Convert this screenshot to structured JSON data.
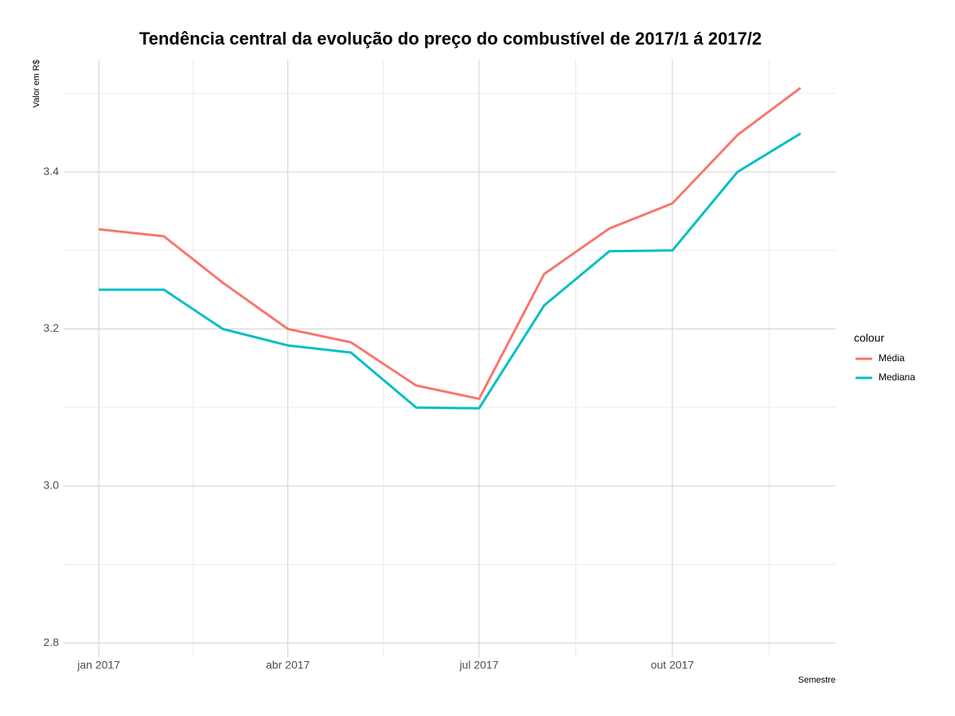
{
  "chart_data": {
    "type": "line",
    "title": "Tendência central da evolução do preço do combustível de 2017/1 á 2017/2",
    "x_label": "Semestre",
    "y_label": "Valor em R$",
    "legend_title": "colour",
    "legend_position": "right",
    "grid": true,
    "x": [
      "2017-01",
      "2017-02",
      "2017-03",
      "2017-04",
      "2017-05",
      "2017-06",
      "2017-07",
      "2017-08",
      "2017-09",
      "2017-10",
      "2017-11",
      "2017-12"
    ],
    "xticks": [
      {
        "value": "2017-01",
        "label": "jan 2017"
      },
      {
        "value": "2017-04",
        "label": "abr 2017"
      },
      {
        "value": "2017-07",
        "label": "jul 2017"
      },
      {
        "value": "2017-10",
        "label": "out 2017"
      }
    ],
    "ylim": [
      2.782,
      3.543
    ],
    "yticks": [
      2.8,
      {
        "value": 3,
        "label": "3.0"
      },
      3.2,
      3.4
    ],
    "series": [
      {
        "name": "Média",
        "color": "#f8766d",
        "values": [
          3.327,
          3.318,
          3.259,
          3.2,
          3.183,
          3.128,
          3.111,
          3.27,
          3.328,
          3.36,
          3.447,
          3.507
        ]
      },
      {
        "name": "Mediana",
        "color": "#00bfc4",
        "values": [
          3.25,
          3.25,
          3.2,
          3.179,
          3.17,
          3.1,
          3.099,
          3.23,
          3.299,
          3.3,
          3.4,
          3.449
        ]
      }
    ]
  }
}
